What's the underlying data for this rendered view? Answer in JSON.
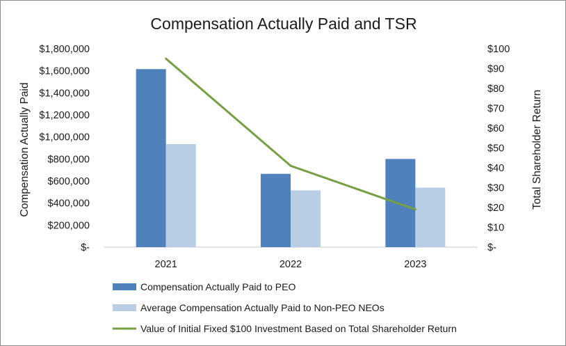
{
  "chart_data": {
    "type": "bar",
    "title": "Compensation Actually Paid and TSR",
    "categories": [
      "2021",
      "2022",
      "2023"
    ],
    "ylabel": "Compensation Actually Paid",
    "y2label": "Total Shareholder Return",
    "ylim": [
      0,
      1800000
    ],
    "y2lim": [
      0,
      100
    ],
    "yticks": [
      "$-",
      "$200,000",
      "$400,000",
      "$600,000",
      "$800,000",
      "$1,000,000",
      "$1,200,000",
      "$1,400,000",
      "$1,600,000",
      "$1,800,000"
    ],
    "y2ticks": [
      "$-",
      "$10",
      "$20",
      "$30",
      "$40",
      "$50",
      "$60",
      "$70",
      "$80",
      "$90",
      "$100"
    ],
    "grid": false,
    "legend_position": "bottom",
    "series": [
      {
        "name": "Compensation Actually Paid to PEO",
        "type": "bar",
        "axis": "left",
        "color": "#4f81bd",
        "values": [
          1615000,
          665000,
          800000
        ]
      },
      {
        "name": "Average Compensation Actually Paid to Non-PEO NEOs",
        "type": "bar",
        "axis": "left",
        "color": "#b9cde5",
        "values": [
          935000,
          515000,
          540000
        ]
      },
      {
        "name": "Value of Initial Fixed $100 Investment Based on Total Shareholder Return",
        "type": "line",
        "axis": "right",
        "color": "#77a044",
        "values": [
          95,
          41,
          19
        ]
      }
    ]
  }
}
